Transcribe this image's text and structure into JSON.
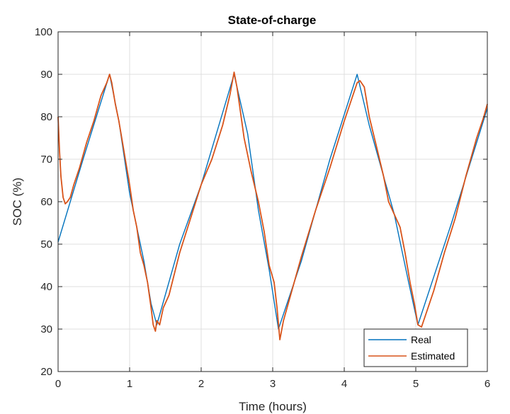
{
  "chart_data": {
    "type": "line",
    "title": "State-of-charge",
    "xlabel": "Time (hours)",
    "ylabel": "SOC (%)",
    "xlim": [
      0,
      6
    ],
    "ylim": [
      20,
      100
    ],
    "xticks": [
      0,
      1,
      2,
      3,
      4,
      5,
      6
    ],
    "yticks": [
      20,
      30,
      40,
      50,
      60,
      70,
      80,
      90,
      100
    ],
    "xtick_labels": [
      "0",
      "1",
      "2",
      "3",
      "4",
      "5",
      "6"
    ],
    "ytick_labels": [
      "20",
      "30",
      "40",
      "50",
      "60",
      "70",
      "80",
      "90",
      "100"
    ],
    "grid": true,
    "legend_position": "bottom-right",
    "series": [
      {
        "name": "Real",
        "color": "#0072BD",
        "x": [
          0,
          0.35,
          0.72,
          0.85,
          1.0,
          1.1,
          1.2,
          1.3,
          1.38,
          1.7,
          2.0,
          2.46,
          2.65,
          2.8,
          2.95,
          3.08,
          3.4,
          3.8,
          4.18,
          4.35,
          4.55,
          4.7,
          4.9,
          5.03,
          5.5,
          6.0
        ],
        "values": [
          50.5,
          70,
          90,
          79,
          62,
          54,
          46,
          36,
          31,
          50,
          64,
          90,
          76,
          58,
          44,
          30,
          46,
          70,
          90,
          78,
          66,
          57,
          41,
          31,
          55,
          82
        ]
      },
      {
        "name": "Estimated",
        "color": "#D95319",
        "x": [
          0,
          0.02,
          0.04,
          0.07,
          0.1,
          0.13,
          0.17,
          0.22,
          0.3,
          0.4,
          0.5,
          0.6,
          0.68,
          0.72,
          0.75,
          0.8,
          0.85,
          0.9,
          0.95,
          1.0,
          1.05,
          1.1,
          1.15,
          1.2,
          1.25,
          1.3,
          1.33,
          1.36,
          1.38,
          1.42,
          1.47,
          1.55,
          1.7,
          1.85,
          2.0,
          2.15,
          2.3,
          2.4,
          2.46,
          2.5,
          2.55,
          2.6,
          2.7,
          2.8,
          2.88,
          2.95,
          3.02,
          3.06,
          3.1,
          3.15,
          3.25,
          3.4,
          3.6,
          3.8,
          4.0,
          4.1,
          4.18,
          4.22,
          4.28,
          4.35,
          4.45,
          4.55,
          4.62,
          4.7,
          4.78,
          4.85,
          4.92,
          4.98,
          5.03,
          5.08,
          5.15,
          5.25,
          5.4,
          5.55,
          5.7,
          5.85,
          5.95,
          6.0
        ],
        "values": [
          80,
          72,
          66,
          61,
          59.5,
          60,
          61,
          64,
          68,
          74,
          79,
          85,
          88,
          90,
          88,
          83,
          79,
          74,
          69,
          64,
          58,
          54,
          48,
          45,
          41,
          35,
          31,
          29.5,
          32,
          31,
          35,
          38,
          48,
          56,
          64,
          70,
          78,
          85,
          90.5,
          87,
          81,
          75,
          67,
          60,
          53,
          45,
          41,
          35,
          27.5,
          32,
          38,
          47,
          58,
          68,
          79,
          84,
          88,
          88.5,
          87,
          80,
          73,
          66,
          60,
          57,
          54,
          48,
          41,
          36,
          31,
          30.5,
          34,
          39,
          48,
          56,
          66,
          75,
          80,
          83
        ]
      }
    ]
  }
}
